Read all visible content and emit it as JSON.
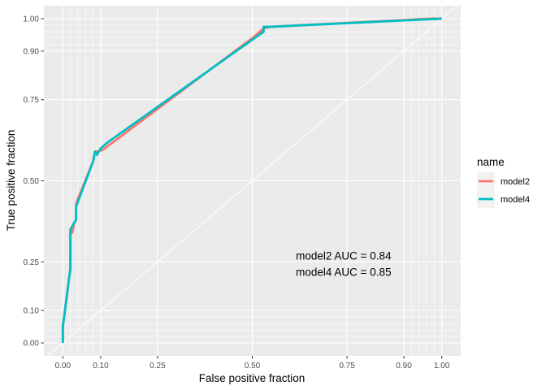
{
  "chart_data": {
    "type": "line",
    "title": "",
    "xlabel": "False positive fraction",
    "ylabel": "True positive fraction",
    "xlim": [
      -0.05,
      1.05
    ],
    "ylim": [
      -0.04,
      1.04
    ],
    "x_ticks": [
      0.0,
      0.1,
      0.25,
      0.5,
      0.75,
      0.9,
      1.0
    ],
    "y_ticks": [
      0.0,
      0.1,
      0.25,
      0.5,
      0.75,
      0.9,
      1.0
    ],
    "x_tick_labels": [
      "0.00",
      "0.10",
      "0.25",
      "0.50",
      "0.75",
      "0.90",
      "1.00"
    ],
    "y_tick_labels": [
      "0.00",
      "0.10",
      "0.25",
      "0.50",
      "0.75",
      "0.90",
      "1.00"
    ],
    "x_minor_gridlines": [
      0.02,
      0.04,
      0.06,
      0.08,
      0.92,
      0.94,
      0.96,
      0.98
    ],
    "y_minor_gridlines": [
      0.02,
      0.04,
      0.06,
      0.08,
      0.92,
      0.94,
      0.96,
      0.98
    ],
    "grid": true,
    "reference_line": {
      "from": [
        0,
        0
      ],
      "to": [
        1,
        1
      ]
    },
    "legend": {
      "title": "name",
      "placement": "right"
    },
    "series": [
      {
        "name": "model2",
        "color": "#F8766D",
        "points": [
          [
            0.0,
            0.0
          ],
          [
            0.0,
            0.05
          ],
          [
            0.02,
            0.23
          ],
          [
            0.02,
            0.34
          ],
          [
            0.022,
            0.35
          ],
          [
            0.025,
            0.35
          ],
          [
            0.025,
            0.34
          ],
          [
            0.03,
            0.37
          ],
          [
            0.035,
            0.38
          ],
          [
            0.035,
            0.43
          ],
          [
            0.08,
            0.56
          ],
          [
            0.085,
            0.59
          ],
          [
            0.09,
            0.59
          ],
          [
            0.105,
            0.595
          ],
          [
            0.5,
            0.94
          ],
          [
            0.53,
            0.97
          ],
          [
            0.55,
            0.975
          ],
          [
            0.97,
            1.0
          ],
          [
            1.0,
            1.0
          ]
        ]
      },
      {
        "name": "model4",
        "color": "#00BFC4",
        "points": [
          [
            0.0,
            0.0
          ],
          [
            0.0,
            0.05
          ],
          [
            0.02,
            0.23
          ],
          [
            0.02,
            0.35
          ],
          [
            0.03,
            0.37
          ],
          [
            0.035,
            0.38
          ],
          [
            0.035,
            0.42
          ],
          [
            0.08,
            0.56
          ],
          [
            0.085,
            0.59
          ],
          [
            0.09,
            0.58
          ],
          [
            0.1,
            0.6
          ],
          [
            0.12,
            0.62
          ],
          [
            0.53,
            0.96
          ],
          [
            0.53,
            0.975
          ],
          [
            0.55,
            0.975
          ],
          [
            1.0,
            1.0
          ]
        ]
      }
    ],
    "annotations": [
      "model2 AUC = 0.84",
      "model4 AUC = 0.85"
    ],
    "annotation_position": [
      0.615,
      0.25
    ]
  }
}
